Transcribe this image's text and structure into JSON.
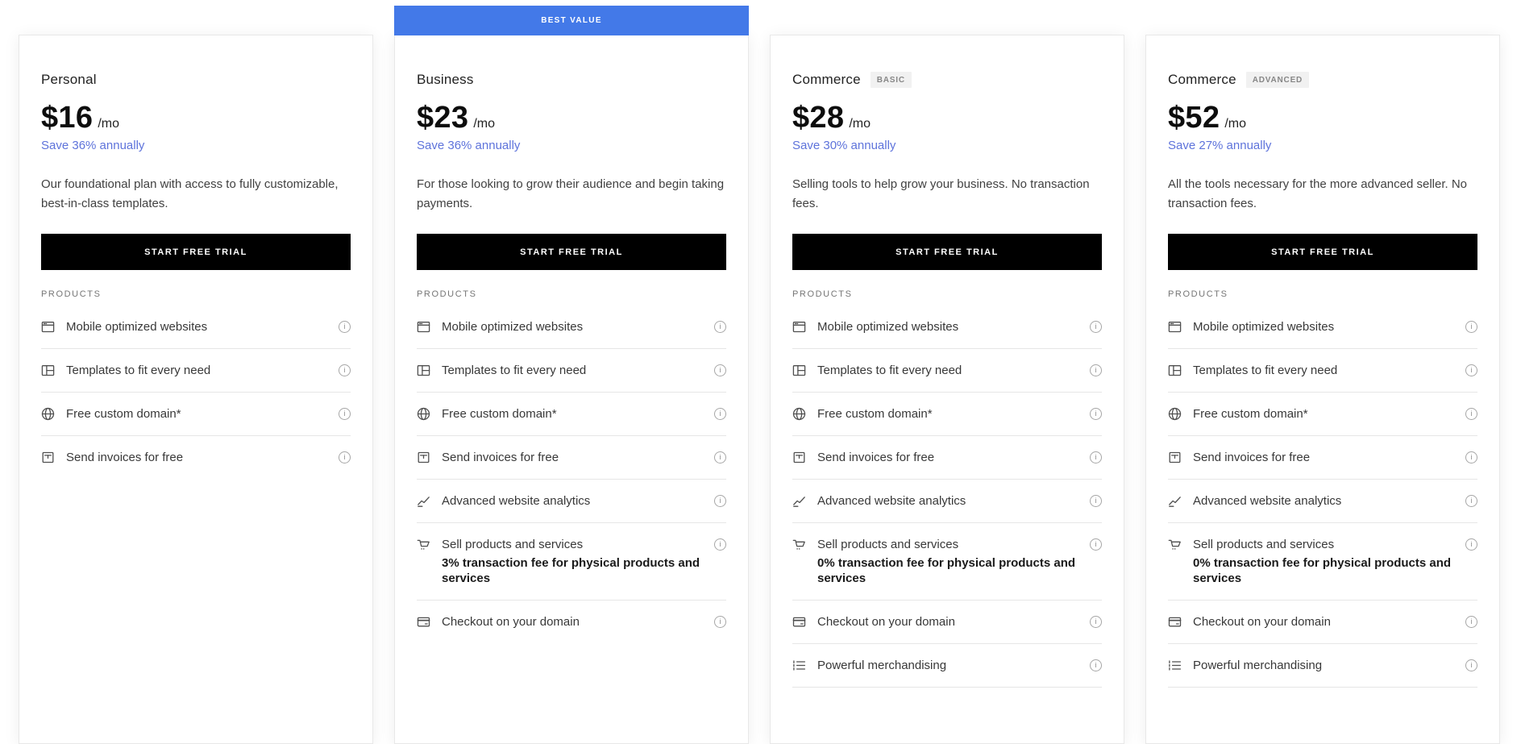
{
  "page": {
    "products_section_label": "PRODUCTS",
    "cta_label": "START FREE TRIAL",
    "banner_color": "#4379e8",
    "save_link_color": "#5e73db",
    "cta_background": "#000000",
    "info_icon": "info-icon"
  },
  "plans": [
    {
      "name": "Personal",
      "badge": "",
      "banner": "",
      "price": "$16",
      "period": "/mo",
      "save": "Save 36% annually",
      "description": "Our foundational plan with access to fully customizable, best-in-class templates.",
      "trailing_divider": false,
      "features": [
        {
          "icon": "browser-window-icon",
          "label": "Mobile optimized websites",
          "sublabel": ""
        },
        {
          "icon": "template-layout-icon",
          "label": "Templates to fit every need",
          "sublabel": ""
        },
        {
          "icon": "globe-icon",
          "label": "Free custom domain*",
          "sublabel": ""
        },
        {
          "icon": "invoice-icon",
          "label": "Send invoices for free",
          "sublabel": ""
        }
      ]
    },
    {
      "name": "Business",
      "badge": "",
      "banner": "BEST VALUE",
      "price": "$23",
      "period": "/mo",
      "save": "Save 36% annually",
      "description": "For those looking to grow their audience and begin taking payments.",
      "trailing_divider": false,
      "features": [
        {
          "icon": "browser-window-icon",
          "label": "Mobile optimized websites",
          "sublabel": ""
        },
        {
          "icon": "template-layout-icon",
          "label": "Templates to fit every need",
          "sublabel": ""
        },
        {
          "icon": "globe-icon",
          "label": "Free custom domain*",
          "sublabel": ""
        },
        {
          "icon": "invoice-icon",
          "label": "Send invoices for free",
          "sublabel": ""
        },
        {
          "icon": "line-chart-icon",
          "label": "Advanced website analytics",
          "sublabel": ""
        },
        {
          "icon": "shopping-cart-icon",
          "label": "Sell products and services",
          "sublabel": "3% transaction fee for physical products and services"
        },
        {
          "icon": "credit-card-icon",
          "label": "Checkout on your domain",
          "sublabel": ""
        }
      ]
    },
    {
      "name": "Commerce",
      "badge": "BASIC",
      "banner": "",
      "price": "$28",
      "period": "/mo",
      "save": "Save 30% annually",
      "description": "Selling tools to help grow your business. No transaction fees.",
      "trailing_divider": true,
      "features": [
        {
          "icon": "browser-window-icon",
          "label": "Mobile optimized websites",
          "sublabel": ""
        },
        {
          "icon": "template-layout-icon",
          "label": "Templates to fit every need",
          "sublabel": ""
        },
        {
          "icon": "globe-icon",
          "label": "Free custom domain*",
          "sublabel": ""
        },
        {
          "icon": "invoice-icon",
          "label": "Send invoices for free",
          "sublabel": ""
        },
        {
          "icon": "line-chart-icon",
          "label": "Advanced website analytics",
          "sublabel": ""
        },
        {
          "icon": "shopping-cart-icon",
          "label": "Sell products and services",
          "sublabel": "0% transaction fee for physical products and services"
        },
        {
          "icon": "credit-card-icon",
          "label": "Checkout on your domain",
          "sublabel": ""
        },
        {
          "icon": "merchandising-list-icon",
          "label": "Powerful merchandising",
          "sublabel": ""
        }
      ]
    },
    {
      "name": "Commerce",
      "badge": "ADVANCED",
      "banner": "",
      "price": "$52",
      "period": "/mo",
      "save": "Save 27% annually",
      "description": "All the tools necessary for the more advanced seller. No transaction fees.",
      "trailing_divider": true,
      "features": [
        {
          "icon": "browser-window-icon",
          "label": "Mobile optimized websites",
          "sublabel": ""
        },
        {
          "icon": "template-layout-icon",
          "label": "Templates to fit every need",
          "sublabel": ""
        },
        {
          "icon": "globe-icon",
          "label": "Free custom domain*",
          "sublabel": ""
        },
        {
          "icon": "invoice-icon",
          "label": "Send invoices for free",
          "sublabel": ""
        },
        {
          "icon": "line-chart-icon",
          "label": "Advanced website analytics",
          "sublabel": ""
        },
        {
          "icon": "shopping-cart-icon",
          "label": "Sell products and services",
          "sublabel": "0% transaction fee for physical products and services"
        },
        {
          "icon": "credit-card-icon",
          "label": "Checkout on your domain",
          "sublabel": ""
        },
        {
          "icon": "merchandising-list-icon",
          "label": "Powerful merchandising",
          "sublabel": ""
        }
      ]
    }
  ]
}
